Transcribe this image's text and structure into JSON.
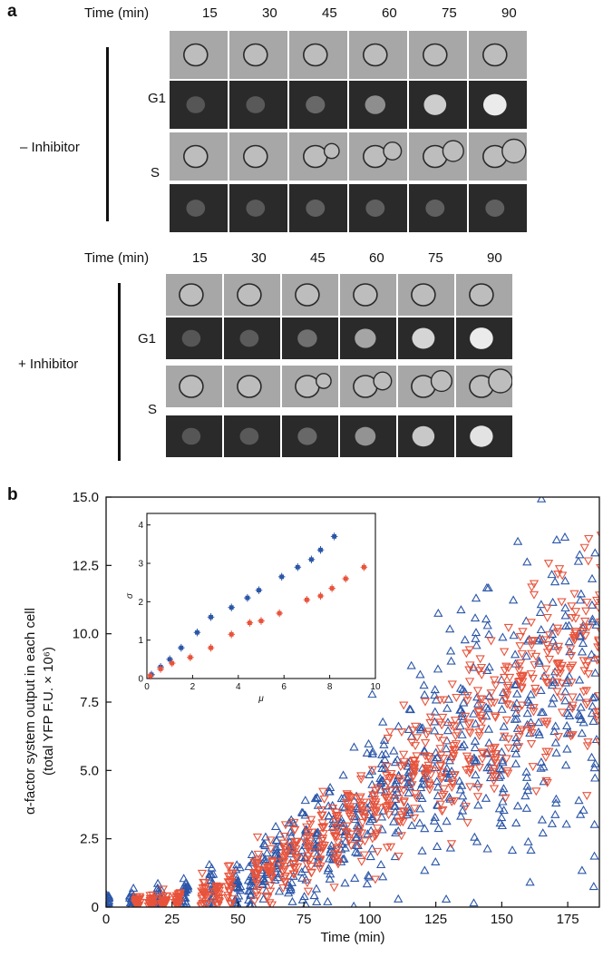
{
  "panel_a": {
    "letter": "a",
    "time_label": "Time (min)",
    "times": [
      "15",
      "30",
      "45",
      "60",
      "75",
      "90"
    ],
    "groups": [
      {
        "label": "– Inhibitor",
        "rows": [
          {
            "label": "G1",
            "brightness": [
              0.1,
              0.12,
              0.2,
              0.42,
              0.78,
              0.95
            ]
          },
          {
            "label": "S",
            "brightness": [
              0.12,
              0.12,
              0.15,
              0.15,
              0.15,
              0.15
            ]
          }
        ]
      },
      {
        "label": "+ Inhibitor",
        "rows": [
          {
            "label": "G1",
            "brightness": [
              0.1,
              0.13,
              0.25,
              0.55,
              0.82,
              0.95
            ]
          },
          {
            "label": "S",
            "brightness": [
              0.1,
              0.12,
              0.2,
              0.45,
              0.75,
              0.9
            ]
          }
        ]
      }
    ]
  },
  "panel_b": {
    "letter": "b"
  },
  "colors": {
    "blue": "#2b56a8",
    "red": "#e8533b"
  },
  "chart_data": [
    {
      "type": "scatter",
      "title": "",
      "xlabel": "Time (min)",
      "ylabel_line1": "α-factor system output in each cell",
      "ylabel_line2": "(total YFP F.U. × 10⁶)",
      "xlim": [
        0,
        187
      ],
      "ylim": [
        0,
        15
      ],
      "xticks": [
        "0",
        "25",
        "50",
        "75",
        "100",
        "125",
        "150",
        "175"
      ],
      "yticks": [
        "0",
        "2.5",
        "5.0",
        "7.5",
        "10.0",
        "12.5",
        "15.0"
      ],
      "grid": false,
      "series": [
        {
          "color": "blue",
          "marker": "triangle-up",
          "times": [
            0,
            10,
            20,
            30,
            40,
            50,
            55,
            60,
            65,
            70,
            75,
            80,
            85,
            90,
            95,
            100,
            105,
            110,
            115,
            120,
            125,
            130,
            135,
            140,
            145,
            150,
            155,
            160,
            165,
            170,
            175,
            180,
            185
          ],
          "mean": [
            0.25,
            0.25,
            0.3,
            0.45,
            0.7,
            0.9,
            1.1,
            1.3,
            1.6,
            1.9,
            2.2,
            2.5,
            2.8,
            3.1,
            3.4,
            3.7,
            4.0,
            4.3,
            4.6,
            4.9,
            5.2,
            5.5,
            5.8,
            6.1,
            6.4,
            6.7,
            7.0,
            7.2,
            7.4,
            7.6,
            7.8,
            8.0,
            8.2
          ],
          "sd": [
            0.15,
            0.2,
            0.25,
            0.4,
            0.5,
            0.55,
            0.6,
            0.7,
            0.8,
            0.9,
            1.0,
            1.1,
            1.2,
            1.3,
            1.4,
            1.5,
            1.6,
            1.7,
            1.8,
            1.9,
            2.0,
            2.1,
            2.2,
            2.3,
            2.45,
            2.6,
            2.7,
            2.8,
            2.9,
            3.0,
            3.1,
            3.3,
            3.5
          ],
          "n": 22
        },
        {
          "color": "red",
          "marker": "triangle-down",
          "times": [
            12,
            17,
            22,
            27,
            37,
            42,
            47,
            57,
            62,
            67,
            72,
            77,
            82,
            87,
            92,
            97,
            102,
            107,
            112,
            117,
            122,
            127,
            132,
            137,
            142,
            147,
            152,
            157,
            162,
            167,
            172,
            177,
            182,
            187
          ],
          "mean": [
            0.2,
            0.2,
            0.25,
            0.3,
            0.5,
            0.6,
            0.8,
            1.1,
            1.3,
            1.5,
            1.8,
            2.1,
            2.4,
            2.7,
            3.0,
            3.3,
            3.7,
            4.1,
            4.5,
            4.9,
            5.3,
            5.7,
            6.0,
            6.3,
            6.6,
            6.9,
            7.2,
            7.5,
            7.8,
            8.1,
            8.4,
            8.7,
            9.0,
            9.3
          ],
          "sd": [
            0.1,
            0.12,
            0.15,
            0.2,
            0.3,
            0.35,
            0.4,
            0.5,
            0.6,
            0.65,
            0.7,
            0.75,
            0.8,
            0.85,
            0.9,
            0.95,
            1.0,
            1.05,
            1.1,
            1.15,
            1.2,
            1.3,
            1.4,
            1.5,
            1.6,
            1.7,
            1.8,
            1.9,
            2.0,
            2.1,
            2.15,
            2.2,
            2.25,
            2.3
          ],
          "n": 22
        }
      ]
    },
    {
      "type": "scatter",
      "title": "",
      "xlabel": "μ",
      "ylabel": "σ",
      "xlim": [
        0,
        10
      ],
      "ylim": [
        0,
        4.3
      ],
      "xticks": [
        "0",
        "2",
        "4",
        "6",
        "8",
        "10"
      ],
      "yticks": [
        "0",
        "1",
        "2",
        "3",
        "4"
      ],
      "series": [
        {
          "color": "blue",
          "points": [
            [
              0.2,
              0.1
            ],
            [
              0.6,
              0.3
            ],
            [
              1.0,
              0.5
            ],
            [
              1.5,
              0.8
            ],
            [
              2.2,
              1.2
            ],
            [
              2.8,
              1.6
            ],
            [
              3.7,
              1.85
            ],
            [
              4.4,
              2.1
            ],
            [
              4.9,
              2.3
            ],
            [
              5.9,
              2.65
            ],
            [
              6.6,
              2.9
            ],
            [
              7.2,
              3.1
            ],
            [
              7.6,
              3.35
            ],
            [
              8.2,
              3.7
            ]
          ],
          "xerr": 0.15,
          "yerr": 0.1
        },
        {
          "color": "red",
          "points": [
            [
              0.15,
              0.07
            ],
            [
              0.6,
              0.25
            ],
            [
              1.1,
              0.4
            ],
            [
              1.9,
              0.55
            ],
            [
              2.8,
              0.8
            ],
            [
              3.7,
              1.15
            ],
            [
              4.5,
              1.45
            ],
            [
              5.0,
              1.5
            ],
            [
              5.8,
              1.7
            ],
            [
              7.0,
              2.05
            ],
            [
              7.6,
              2.15
            ],
            [
              8.1,
              2.35
            ],
            [
              8.7,
              2.6
            ],
            [
              9.5,
              2.9
            ]
          ],
          "xerr": 0.15,
          "yerr": 0.1
        }
      ]
    }
  ]
}
